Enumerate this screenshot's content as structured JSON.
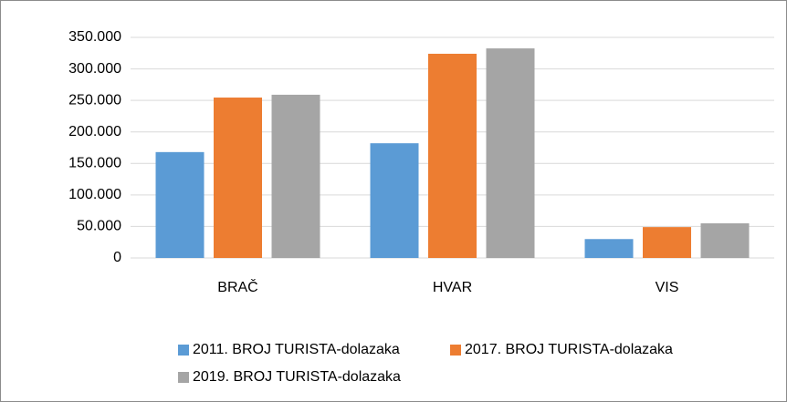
{
  "chart_data": {
    "type": "bar",
    "categories": [
      "BRAČ",
      "HVAR",
      "VIS"
    ],
    "series": [
      {
        "name": "2011. BROJ TURISTA-dolazaka",
        "color": "#5b9bd5",
        "values": [
          168000,
          182000,
          30000
        ]
      },
      {
        "name": "2017. BROJ TURISTA-dolazaka",
        "color": "#ed7d31",
        "values": [
          254500,
          324000,
          49000
        ]
      },
      {
        "name": "2019. BROJ TURISTA-dolazaka",
        "color": "#a5a5a5",
        "values": [
          259000,
          332500,
          55000
        ]
      }
    ],
    "ylim": [
      0,
      350000
    ],
    "yticks": [
      0,
      {
        "value": 50000,
        "label": "50.000"
      },
      {
        "value": 100000,
        "label": "100.000"
      },
      {
        "value": 150000,
        "label": "150.000"
      },
      {
        "value": 200000,
        "label": "200.000"
      },
      {
        "value": 250000,
        "label": "250.000"
      },
      {
        "value": 300000,
        "label": "300.000"
      },
      {
        "value": 350000,
        "label": "350.000"
      }
    ],
    "grid": true,
    "legend": "bottom"
  }
}
